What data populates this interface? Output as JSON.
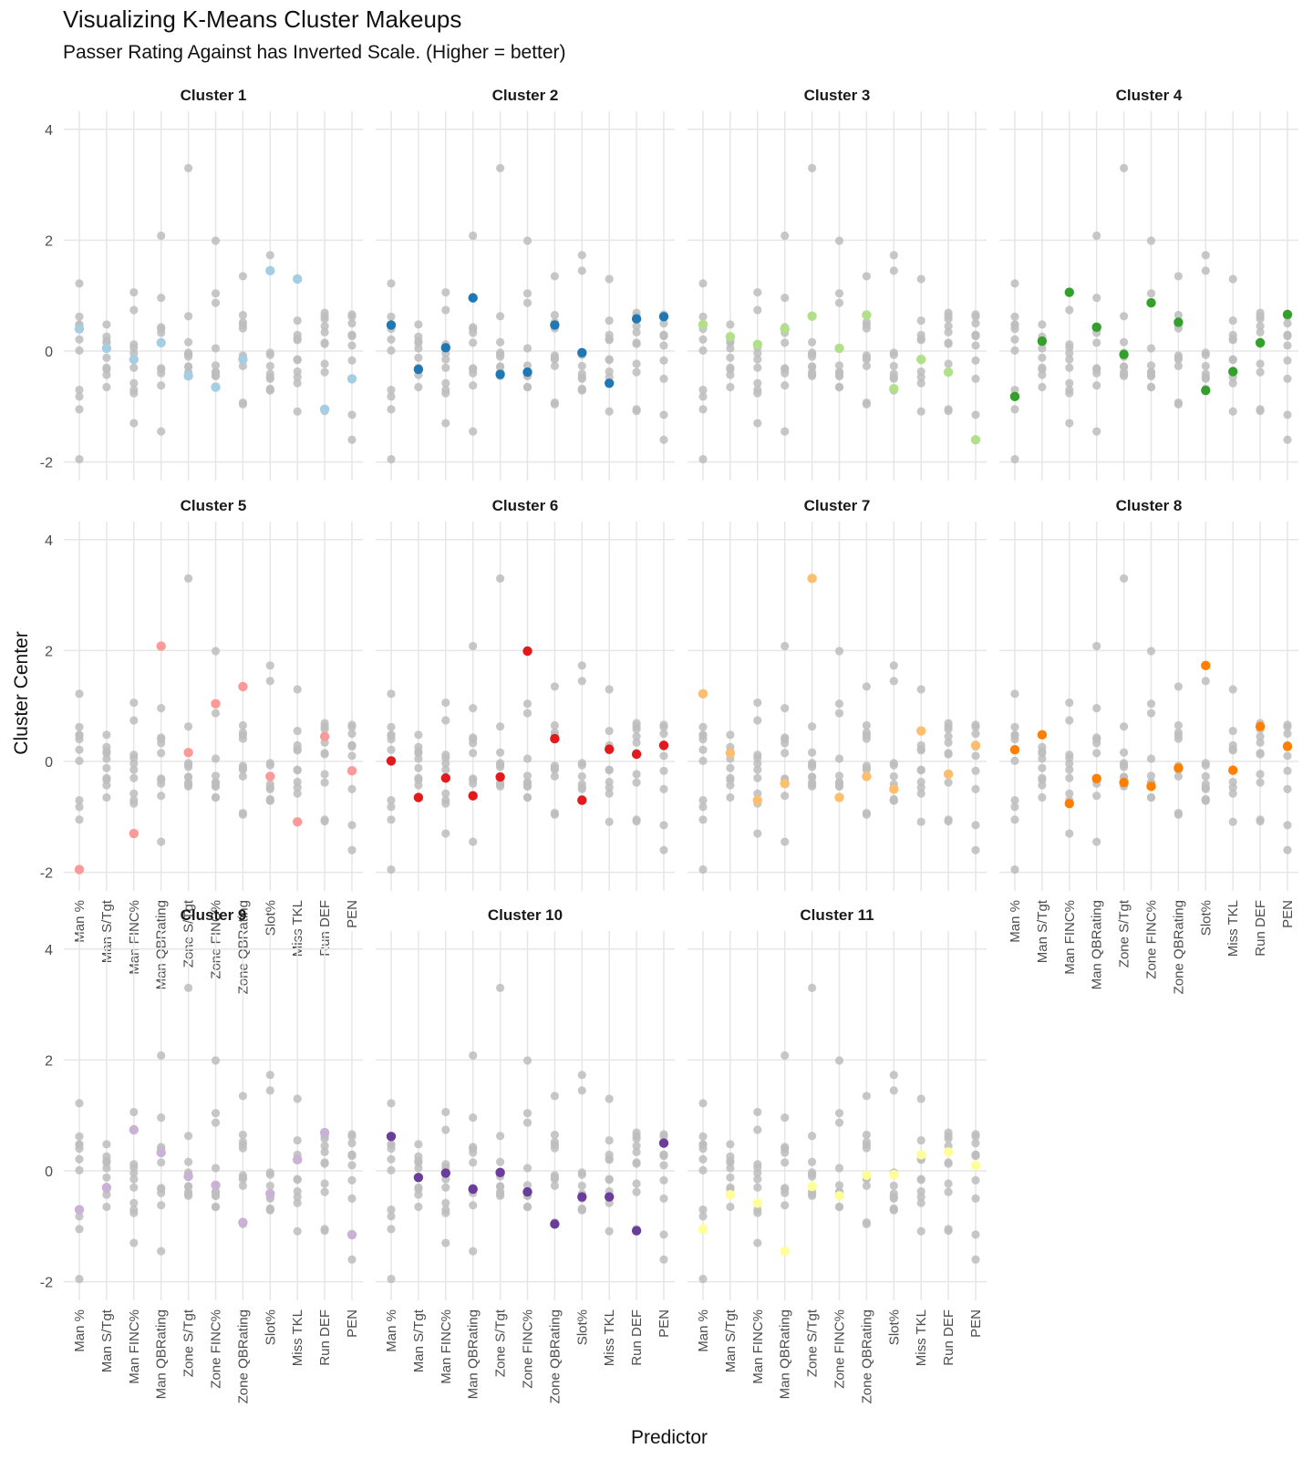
{
  "chart_data": {
    "type": "scatter",
    "title": "Visualizing K-Means Cluster Makeups",
    "subtitle": "Passer Rating Against has Inverted Scale. (Higher = better)",
    "xlabel": "Predictor",
    "ylabel": "Cluster Center",
    "ylim": [
      -2.2,
      4.2
    ],
    "y_ticks": [
      -2,
      0,
      2,
      4
    ],
    "y_tick_labels": [
      "-2",
      "0",
      "2",
      "4"
    ],
    "grid": true,
    "facet_layout": "4 columns x 3 rows",
    "categories": [
      "Man %",
      "Man S/Tgt",
      "Man FINC%",
      "Man QBRating",
      "Zone S/Tgt",
      "Zone FINC%",
      "Zone QBRating",
      "Slot%",
      "Miss TKL",
      "Run DEF",
      "PEN"
    ],
    "background_color": "#bdbdbd",
    "series": [
      {
        "name": "Cluster 1",
        "color": "#a6cee3",
        "values": [
          0.4,
          0.05,
          -0.15,
          0.15,
          -0.45,
          -0.65,
          -0.15,
          1.45,
          1.3,
          -1.05,
          -0.5
        ]
      },
      {
        "name": "Cluster 2",
        "color": "#1f78b4",
        "values": [
          0.47,
          -0.33,
          0.06,
          0.96,
          -0.42,
          -0.38,
          0.47,
          -0.03,
          -0.58,
          0.58,
          0.62
        ]
      },
      {
        "name": "Cluster 3",
        "color": "#b2df8a",
        "values": [
          0.48,
          0.26,
          0.12,
          0.4,
          0.63,
          0.05,
          0.65,
          -0.68,
          -0.15,
          -0.38,
          -1.6
        ]
      },
      {
        "name": "Cluster 4",
        "color": "#33a02c",
        "values": [
          -0.82,
          0.18,
          1.06,
          0.43,
          -0.06,
          0.87,
          0.52,
          -0.71,
          -0.37,
          0.15,
          0.66
        ]
      },
      {
        "name": "Cluster 5",
        "color": "#fb9a99",
        "values": [
          -1.95,
          null,
          -1.3,
          2.08,
          0.16,
          1.04,
          1.35,
          -0.27,
          -1.09,
          0.45,
          -0.17
        ]
      },
      {
        "name": "Cluster 6",
        "color": "#e31a1c",
        "values": [
          0.01,
          -0.65,
          -0.3,
          -0.62,
          -0.28,
          1.99,
          0.41,
          -0.7,
          0.22,
          0.13,
          0.29
        ]
      },
      {
        "name": "Cluster 7",
        "color": "#fdbf6f",
        "values": [
          1.22,
          0.15,
          -0.7,
          -0.4,
          3.3,
          -0.65,
          -0.27,
          -0.5,
          0.55,
          -0.23,
          0.29
        ]
      },
      {
        "name": "Cluster 8",
        "color": "#ff7f00",
        "values": [
          0.21,
          0.48,
          -0.76,
          -0.31,
          -0.38,
          -0.45,
          -0.12,
          1.73,
          -0.16,
          0.63,
          0.27
        ]
      },
      {
        "name": "Cluster 9",
        "color": "#cab2d6",
        "values": [
          -0.7,
          -0.3,
          0.74,
          0.33,
          -0.1,
          -0.26,
          -0.93,
          -0.41,
          0.2,
          0.69,
          -1.15
        ]
      },
      {
        "name": "Cluster 10",
        "color": "#6a3d9a",
        "values": [
          0.62,
          -0.12,
          -0.04,
          -0.33,
          -0.03,
          -0.38,
          -0.96,
          -0.47,
          -0.47,
          -1.08,
          0.5
        ]
      },
      {
        "name": "Cluster 11",
        "color": "#ffff99",
        "values": [
          -1.05,
          -0.43,
          -0.58,
          -1.45,
          -0.28,
          -0.45,
          -0.08,
          -0.07,
          0.29,
          0.34,
          0.1
        ]
      }
    ]
  }
}
